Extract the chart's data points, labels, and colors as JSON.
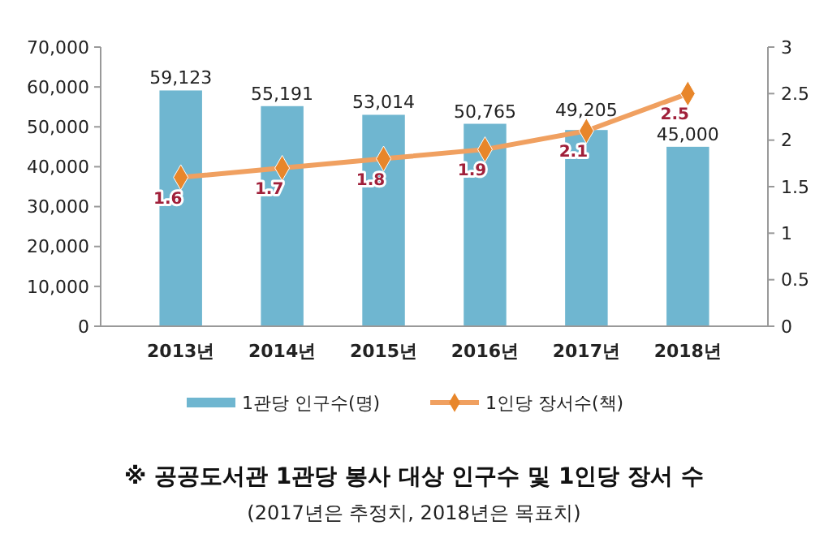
{
  "chart_data": {
    "type": "bar",
    "title": "※ 공공도서관 1관당 봉사 대상 인구수 및 1인당 장서 수",
    "subtitle": "(2017년은 추정치, 2018년은 목표치)",
    "categories": [
      "2013년",
      "2014년",
      "2015년",
      "2016년",
      "2017년",
      "2018년"
    ],
    "series": [
      {
        "name": "1관당 인구수(명)",
        "color": "#6fb6d0",
        "values": [
          59123,
          55191,
          53014,
          50765,
          49205,
          45000
        ],
        "value_labels": [
          "59,123",
          "55,191",
          "53,014",
          "50,765",
          "49,205",
          "45,000"
        ]
      },
      {
        "name": "1인당 장서수(책)",
        "type": "line",
        "axis": "y2",
        "color": "#f0a060",
        "marker": "diamond",
        "values": [
          1.6,
          1.7,
          1.8,
          1.9,
          2.1,
          2.5
        ],
        "value_labels": [
          "1.6",
          "1.7",
          "1.8",
          "1.9",
          "2.1",
          "2.5"
        ]
      }
    ],
    "ylim": [
      0,
      70000
    ],
    "yticks": [
      {
        "value": 0,
        "label": "0"
      },
      {
        "value": 10000,
        "label": "10,000"
      },
      {
        "value": 20000,
        "label": "20,000"
      },
      {
        "value": 30000,
        "label": "30,000"
      },
      {
        "value": 40000,
        "label": "40,000"
      },
      {
        "value": 50000,
        "label": "50,000"
      },
      {
        "value": 60000,
        "label": "60,000"
      },
      {
        "value": 70000,
        "label": "70,000"
      }
    ],
    "y2lim": [
      0,
      3
    ],
    "y2ticks": [
      0,
      0.5,
      1,
      1.5,
      2,
      2.5,
      3
    ],
    "legend": "bottom",
    "grid": false
  }
}
